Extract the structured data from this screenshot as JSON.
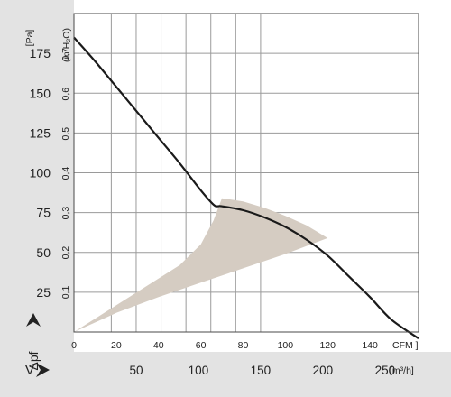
{
  "chart_data": {
    "type": "line",
    "title": "",
    "xlabel": "V",
    "ylabel": "Δpf",
    "x_primary": {
      "unit": "CFM ]",
      "ticks": [
        0,
        20,
        40,
        60,
        80,
        100,
        120,
        140
      ],
      "range": [
        0,
        163
      ]
    },
    "x_secondary": {
      "unit": "[m³/h]",
      "ticks": [
        50,
        100,
        150,
        200,
        250
      ],
      "labels": [
        "50",
        "100",
        "150",
        "200",
        "250"
      ]
    },
    "y_primary": {
      "unit": "[Pa]",
      "ticks": [
        25,
        50,
        75,
        100,
        125,
        150,
        175
      ],
      "labels": [
        "25",
        "50",
        "75",
        "100",
        "125",
        "150",
        "175"
      ],
      "range": [
        0,
        200
      ]
    },
    "y_secondary": {
      "unit": "(in H₂O)",
      "ticks": [
        0.1,
        0.2,
        0.3,
        0.4,
        0.5,
        0.6,
        0.7
      ],
      "labels": [
        "0,1",
        "0,2",
        "0,3",
        "0,4",
        "0,5",
        "0,6",
        "0,7"
      ]
    },
    "grid": true,
    "series": [
      {
        "x": [
          0,
          10,
          20,
          30,
          40,
          50,
          60,
          66,
          68,
          70,
          80,
          90,
          100,
          110,
          120,
          130,
          140,
          150,
          163
        ],
        "y": [
          185,
          170,
          154,
          138,
          122,
          106,
          89,
          80,
          79,
          79,
          76.5,
          72,
          66,
          58,
          48,
          35,
          22,
          8,
          -4
        ]
      }
    ],
    "shaded_region": {
      "upper": {
        "x": [
          0,
          50,
          60,
          66,
          70,
          80,
          90,
          100,
          110,
          115,
          120
        ],
        "y": [
          0,
          42,
          55,
          70,
          84,
          82,
          78,
          73,
          67,
          63,
          59
        ]
      },
      "lower": {
        "x": [
          0,
          20,
          40,
          60,
          80,
          100,
          120
        ],
        "y": [
          0,
          12,
          22,
          31,
          40,
          49,
          59
        ]
      }
    },
    "colors": {
      "curve": "#1a1a1a",
      "shade": "#d5ccc2",
      "grid": "#9a9a9a",
      "axis_band": "#e3e3e3"
    }
  }
}
